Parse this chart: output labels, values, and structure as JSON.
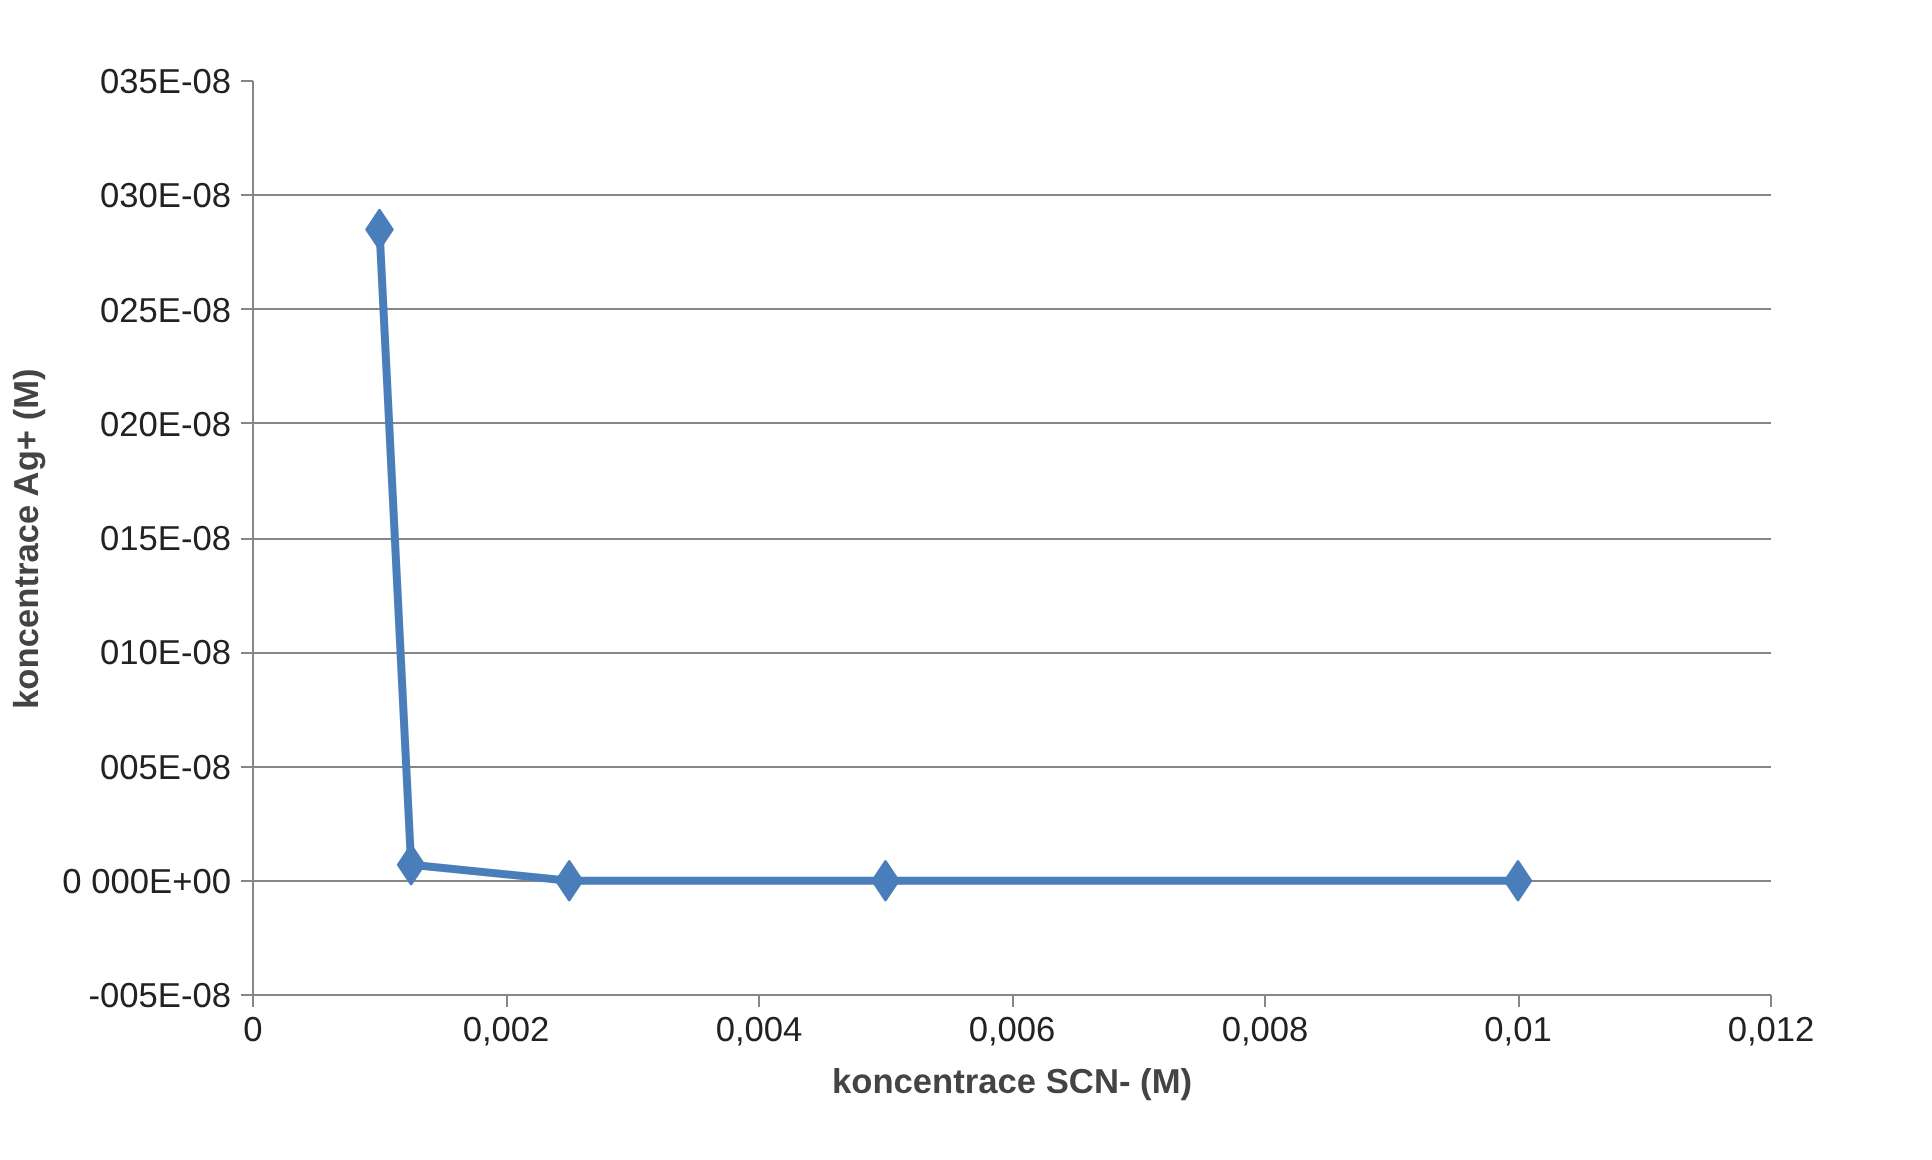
{
  "chart_data": {
    "type": "line",
    "xlabel": "koncentrace SCN- (M)",
    "ylabel": "koncentrace Ag+ (M)",
    "x": [
      0.001,
      0.00125,
      0.0025,
      0.005,
      0.01
    ],
    "series": [
      {
        "color": "#4a7ebb",
        "values": [
          2.85e-07,
          7e-09,
          0,
          0,
          0
        ]
      }
    ],
    "marker": "diamond",
    "grid": "y",
    "xlim": [
      0,
      0.012
    ],
    "xticks": [
      0,
      {
        "value": 0.002,
        "label": "0,002"
      },
      {
        "value": 0.004,
        "label": "0,004"
      },
      {
        "value": 0.006,
        "label": "0,006"
      },
      {
        "value": 0.008,
        "label": "0,008"
      },
      {
        "value": 0.01,
        "label": "0,01"
      },
      {
        "value": 0.012,
        "label": "0,012"
      }
    ],
    "ylim": [
      -5e-08,
      3.5e-07
    ],
    "yticks": [
      {
        "value": -5e-08,
        "label": "-005E-08"
      },
      {
        "value": 0,
        "label": "0 000E+00"
      },
      {
        "value": 5e-08,
        "label": "005E-08"
      },
      {
        "value": 1e-07,
        "label": "010E-08"
      },
      {
        "value": 1.5e-07,
        "label": "015E-08"
      },
      {
        "value": 2e-07,
        "label": "020E-08"
      },
      {
        "value": 2.5e-07,
        "label": "025E-08"
      },
      {
        "value": 3e-07,
        "label": "030E-08"
      },
      {
        "value": 3.5e-07,
        "label": "035E-08"
      }
    ]
  }
}
